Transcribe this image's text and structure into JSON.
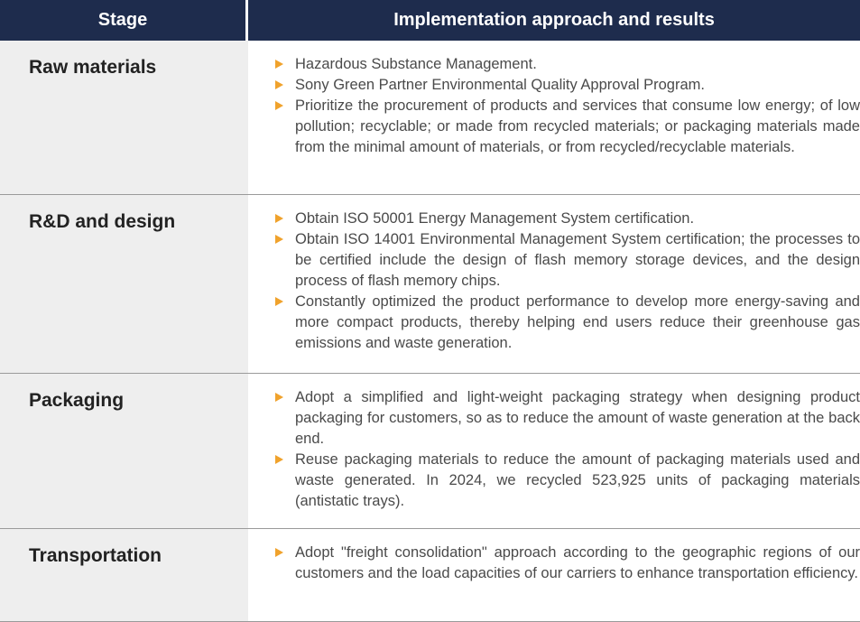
{
  "header": {
    "stage": "Stage",
    "implementation": "Implementation approach and results"
  },
  "rows": [
    {
      "stage": "Raw materials",
      "items": [
        "Hazardous Substance Management.",
        "Sony Green Partner Environmental Quality Approval Program.",
        "Prioritize the procurement of products and services that consume low energy; of low pollution; recyclable; or made from recycled materials; or packaging materials made from the minimal amount of materials, or from recycled/recyclable materials."
      ]
    },
    {
      "stage": "R&D and design",
      "items": [
        "Obtain ISO 50001 Energy Management System certification.",
        "Obtain ISO 14001 Environmental Management System certification; the processes to be certified include the design of flash memory storage devices, and the design process of flash memory chips.",
        "Constantly optimized the product performance to develop more energy-saving and more compact products, thereby helping end users reduce their greenhouse gas emissions and waste generation."
      ]
    },
    {
      "stage": "Packaging",
      "items": [
        "Adopt a simplified and light-weight packaging strategy when designing product packaging for customers, so as to reduce the amount of waste generation at the back end.",
        "Reuse packaging materials to reduce the amount of packaging materials used and waste generated. In 2024, we recycled 523,925 units of packaging materials (antistatic trays)."
      ]
    },
    {
      "stage": "Transportation",
      "items": [
        "Adopt \"freight consolidation\" approach according to the geographic regions of our customers and the load capacities of our carriers to enhance transportation efficiency."
      ]
    }
  ]
}
